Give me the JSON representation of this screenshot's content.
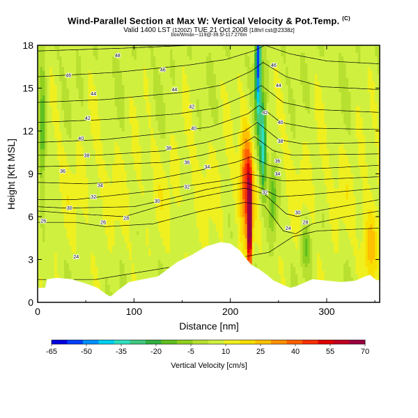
{
  "title": {
    "main": "Wind-Parallel Section at Max W: Vertical Velocity & Pot.Temp.",
    "copyright": "(C)",
    "valid": "Valid 1400 LST",
    "valid_small": "(1200Z)",
    "valid_date": "TUE 21 Oct 2008",
    "valid_run": "[18hrl cst@2338z]",
    "subtitle": "box/Wmax~-119@-39.5/-117.276m"
  },
  "chart_data": {
    "type": "heatmap",
    "title": "Wind-Parallel Section at Max W: Vertical Velocity & Pot.Temp.",
    "xlabel": "Distance [nm]",
    "ylabel": "Height [Kft MSL]",
    "xlim": [
      0,
      355
    ],
    "ylim": [
      0,
      18
    ],
    "xticks": [
      0,
      100,
      200,
      300
    ],
    "yticks": [
      0,
      3,
      6,
      9,
      12,
      15,
      18
    ],
    "colorbar": {
      "label": "Vertical Velocity [cm/s]",
      "ticks": [
        -65,
        -50,
        -35,
        -20,
        -5,
        10,
        25,
        40,
        55,
        70
      ],
      "colors": [
        "#0000e0",
        "#0040ff",
        "#0090ff",
        "#00d0f0",
        "#30e0c0",
        "#40c880",
        "#30b040",
        "#60c020",
        "#90d020",
        "#b8e030",
        "#d0f040",
        "#f0f020",
        "#f8e000",
        "#ffc000",
        "#ff9000",
        "#ff6000",
        "#f83000",
        "#e00000",
        "#c00020",
        "#9a0040"
      ]
    },
    "terrain": {
      "x": [
        0,
        8,
        10,
        20,
        35,
        50,
        62,
        70,
        75,
        78,
        85,
        95,
        110,
        125,
        135,
        145,
        160,
        175,
        190,
        200,
        210,
        214,
        218,
        222,
        230,
        238,
        245,
        255,
        262,
        268,
        275,
        285,
        300,
        315,
        330,
        340,
        345,
        350,
        355
      ],
      "height": [
        1.0,
        1.0,
        1.6,
        1.7,
        1.6,
        1.3,
        1.0,
        0.6,
        0.4,
        0.5,
        0.9,
        1.4,
        1.6,
        1.8,
        2.3,
        2.8,
        3.3,
        3.9,
        4.2,
        4.1,
        3.6,
        3.2,
        2.9,
        2.6,
        2.3,
        1.9,
        1.5,
        1.2,
        1.0,
        1.1,
        1.3,
        1.6,
        1.5,
        1.4,
        1.5,
        1.8,
        1.9,
        1.6,
        1.5
      ]
    },
    "theta_contours": [
      {
        "value": 24,
        "heights": [
          [
            0,
            1.6
          ],
          [
            60,
            1.6
          ],
          [
            150,
            2.6
          ],
          [
            215,
            3.2
          ],
          [
            240,
            3.5
          ],
          [
            265,
            4.6
          ],
          [
            290,
            5.0
          ],
          [
            355,
            5.2
          ]
        ]
      },
      {
        "value": 26,
        "heights": [
          [
            0,
            5.6
          ],
          [
            40,
            5.6
          ],
          [
            70,
            5.3
          ],
          [
            120,
            5.5
          ],
          [
            170,
            6.4
          ],
          [
            215,
            7.0
          ],
          [
            235,
            6.8
          ],
          [
            255,
            5.0
          ],
          [
            268,
            4.8
          ],
          [
            285,
            5.5
          ],
          [
            320,
            6.0
          ],
          [
            355,
            6.4
          ]
        ]
      },
      {
        "value": 28,
        "heights": [
          [
            0,
            6.4
          ],
          [
            40,
            6.2
          ],
          [
            90,
            6.0
          ],
          [
            130,
            6.8
          ],
          [
            170,
            7.4
          ],
          [
            215,
            8.0
          ],
          [
            235,
            7.6
          ],
          [
            258,
            6.2
          ],
          [
            270,
            6.0
          ],
          [
            290,
            6.4
          ],
          [
            355,
            7.2
          ]
        ]
      },
      {
        "value": 30,
        "heights": [
          [
            0,
            6.7
          ],
          [
            30,
            6.6
          ],
          [
            100,
            6.7
          ],
          [
            140,
            7.3
          ],
          [
            175,
            7.9
          ],
          [
            215,
            8.4
          ],
          [
            232,
            8.0
          ],
          [
            250,
            7.4
          ],
          [
            275,
            7.5
          ],
          [
            355,
            8.0
          ]
        ]
      },
      {
        "value": 32,
        "heights": [
          [
            0,
            7.2
          ],
          [
            40,
            7.2
          ],
          [
            120,
            7.8
          ],
          [
            160,
            8.2
          ],
          [
            200,
            8.6
          ],
          [
            218,
            9.0
          ],
          [
            235,
            8.8
          ],
          [
            255,
            8.5
          ],
          [
            290,
            8.6
          ],
          [
            355,
            8.8
          ]
        ]
      },
      {
        "value": 34,
        "heights": [
          [
            0,
            8.4
          ],
          [
            50,
            8.3
          ],
          [
            120,
            8.6
          ],
          [
            165,
            9.2
          ],
          [
            205,
            9.8
          ],
          [
            222,
            10.2
          ],
          [
            240,
            9.6
          ],
          [
            260,
            9.3
          ],
          [
            300,
            9.4
          ],
          [
            355,
            9.6
          ]
        ]
      },
      {
        "value": 36,
        "heights": [
          [
            0,
            9.5
          ],
          [
            60,
            9.6
          ],
          [
            130,
            9.8
          ],
          [
            170,
            10.3
          ],
          [
            210,
            11.0
          ],
          [
            225,
            11.6
          ],
          [
            245,
            10.6
          ],
          [
            265,
            10.3
          ],
          [
            355,
            10.4
          ]
        ]
      },
      {
        "value": 38,
        "heights": [
          [
            0,
            10.3
          ],
          [
            60,
            10.3
          ],
          [
            130,
            10.6
          ],
          [
            175,
            11.2
          ],
          [
            215,
            12.0
          ],
          [
            228,
            12.6
          ],
          [
            250,
            11.4
          ],
          [
            275,
            11.1
          ],
          [
            355,
            11.2
          ]
        ]
      },
      {
        "value": 40,
        "heights": [
          [
            0,
            11.2
          ],
          [
            70,
            11.4
          ],
          [
            140,
            11.9
          ],
          [
            180,
            12.3
          ],
          [
            218,
            13.2
          ],
          [
            230,
            13.8
          ],
          [
            252,
            12.6
          ],
          [
            285,
            12.2
          ],
          [
            355,
            12.1
          ]
        ]
      },
      {
        "value": 42,
        "heights": [
          [
            0,
            12.6
          ],
          [
            70,
            12.8
          ],
          [
            145,
            13.2
          ],
          [
            185,
            13.6
          ],
          [
            220,
            14.6
          ],
          [
            232,
            15.2
          ],
          [
            255,
            14.0
          ],
          [
            290,
            13.5
          ],
          [
            355,
            13.3
          ]
        ]
      },
      {
        "value": 44,
        "heights": [
          [
            0,
            14.0
          ],
          [
            70,
            14.2
          ],
          [
            150,
            14.7
          ],
          [
            190,
            15.2
          ],
          [
            222,
            16.2
          ],
          [
            234,
            16.8
          ],
          [
            258,
            15.8
          ],
          [
            295,
            15.1
          ],
          [
            355,
            14.9
          ]
        ]
      },
      {
        "value": 46,
        "heights": [
          [
            0,
            15.8
          ],
          [
            80,
            16.1
          ],
          [
            155,
            16.6
          ],
          [
            195,
            17.0
          ],
          [
            224,
            17.6
          ],
          [
            236,
            18.0
          ],
          [
            262,
            17.4
          ],
          [
            300,
            16.9
          ],
          [
            355,
            16.7
          ]
        ]
      },
      {
        "value": 48,
        "heights": [
          [
            0,
            17.6
          ],
          [
            90,
            17.8
          ],
          [
            160,
            18.0
          ],
          [
            200,
            18.0
          ],
          [
            355,
            18.0
          ]
        ]
      }
    ],
    "contour_labels": [
      {
        "value": 48,
        "x": 83,
        "y": 17.3
      },
      {
        "value": 46,
        "x": 32,
        "y": 15.9
      },
      {
        "value": 46,
        "x": 130,
        "y": 16.3
      },
      {
        "value": 46,
        "x": 245,
        "y": 16.6
      },
      {
        "value": 44,
        "x": 58,
        "y": 14.6
      },
      {
        "value": 44,
        "x": 142,
        "y": 14.9
      },
      {
        "value": 44,
        "x": 250,
        "y": 15.2
      },
      {
        "value": 42,
        "x": 160,
        "y": 13.7
      },
      {
        "value": 42,
        "x": 236,
        "y": 13.3
      },
      {
        "value": 42,
        "x": 52,
        "y": 12.9
      },
      {
        "value": 40,
        "x": 162,
        "y": 12.2
      },
      {
        "value": 40,
        "x": 252,
        "y": 12.6
      },
      {
        "value": 40,
        "x": 45,
        "y": 11.5
      },
      {
        "value": 38,
        "x": 136,
        "y": 10.8
      },
      {
        "value": 38,
        "x": 252,
        "y": 11.3
      },
      {
        "value": 38,
        "x": 51,
        "y": 10.3
      },
      {
        "value": 36,
        "x": 155,
        "y": 9.8
      },
      {
        "value": 36,
        "x": 249,
        "y": 9.9
      },
      {
        "value": 36,
        "x": 26,
        "y": 9.2
      },
      {
        "value": 34,
        "x": 176,
        "y": 9.5
      },
      {
        "value": 34,
        "x": 249,
        "y": 9.0
      },
      {
        "value": 34,
        "x": 65,
        "y": 8.2
      },
      {
        "value": 32,
        "x": 155,
        "y": 8.1
      },
      {
        "value": 32,
        "x": 58,
        "y": 7.4
      },
      {
        "value": 32,
        "x": 236,
        "y": 7.7
      },
      {
        "value": 30,
        "x": 124,
        "y": 7.1
      },
      {
        "value": 30,
        "x": 33,
        "y": 6.6
      },
      {
        "value": 30,
        "x": 270,
        "y": 6.3
      },
      {
        "value": 28,
        "x": 92,
        "y": 5.9
      },
      {
        "value": 28,
        "x": 278,
        "y": 5.6
      },
      {
        "value": 26,
        "x": 68,
        "y": 5.6
      },
      {
        "value": 26,
        "x": 6,
        "y": 5.7
      },
      {
        "value": 24,
        "x": 260,
        "y": 5.2
      },
      {
        "value": 24,
        "x": 40,
        "y": 3.2
      }
    ]
  }
}
